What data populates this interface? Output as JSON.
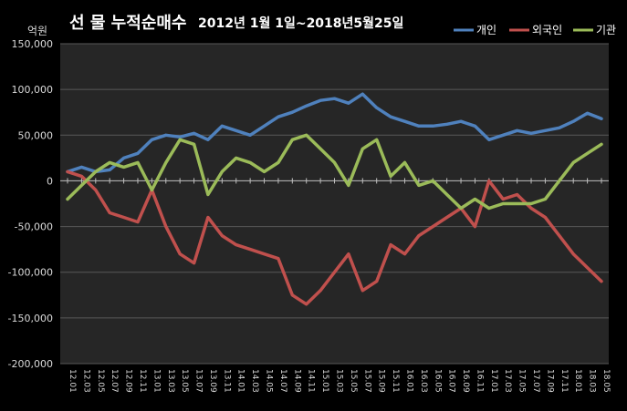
{
  "chart_data": {
    "type": "line",
    "title_main": "선 물 누적순매수",
    "title_sub": "2012년 1월 1일~2018년5월25일",
    "unit_label": "억원",
    "ylim": [
      -200000,
      150000
    ],
    "yticks": [
      150000,
      100000,
      50000,
      0,
      -50000,
      -100000,
      -150000,
      -200000
    ],
    "ytick_labels": [
      "150,000",
      "100,000",
      "50,000",
      "0",
      "-50,000",
      "-100,000",
      "-150,000",
      "-200,000"
    ],
    "grid": true,
    "legend_position": "top-right",
    "x_start": "2012-01",
    "x_end": "2018-05",
    "xtick_labels": [
      "12.01",
      "12.03",
      "12.05",
      "12.07",
      "12.09",
      "12.11",
      "13.01",
      "13.03",
      "13.05",
      "13.07",
      "13.09",
      "13.11",
      "14.01",
      "14.03",
      "14.05",
      "14.07",
      "14.09",
      "14.11",
      "15.01",
      "15.03",
      "15.05",
      "15.07",
      "15.09",
      "15.11",
      "16.01",
      "16.03",
      "16.05",
      "16.07",
      "16.09",
      "16.11",
      "17.01",
      "17.03",
      "17.05",
      "17.07",
      "17.09",
      "17.11",
      "18.01",
      "18.03",
      "18.05"
    ],
    "x": [
      "12.01",
      "12.03",
      "12.05",
      "12.07",
      "12.09",
      "12.11",
      "13.01",
      "13.03",
      "13.05",
      "13.07",
      "13.09",
      "13.11",
      "14.01",
      "14.03",
      "14.05",
      "14.07",
      "14.09",
      "14.11",
      "15.01",
      "15.03",
      "15.05",
      "15.07",
      "15.09",
      "15.11",
      "16.01",
      "16.03",
      "16.05",
      "16.07",
      "16.09",
      "16.11",
      "17.01",
      "17.03",
      "17.05",
      "17.07",
      "17.09",
      "17.11",
      "18.01",
      "18.03",
      "18.05"
    ],
    "series": [
      {
        "name": "개인",
        "color": "#4f81bd",
        "values": [
          10000,
          15000,
          10000,
          12000,
          25000,
          30000,
          45000,
          50000,
          48000,
          52000,
          45000,
          60000,
          55000,
          50000,
          60000,
          70000,
          75000,
          82000,
          88000,
          90000,
          85000,
          95000,
          80000,
          70000,
          65000,
          60000,
          60000,
          62000,
          65000,
          60000,
          45000,
          50000,
          55000,
          52000,
          55000,
          58000,
          65000,
          74000,
          68000
        ]
      },
      {
        "name": "외국인",
        "color": "#c0504d",
        "values": [
          10000,
          5000,
          -10000,
          -35000,
          -40000,
          -45000,
          -10000,
          -50000,
          -80000,
          -90000,
          -40000,
          -60000,
          -70000,
          -75000,
          -80000,
          -85000,
          -125000,
          -135000,
          -120000,
          -100000,
          -80000,
          -120000,
          -110000,
          -70000,
          -80000,
          -60000,
          -50000,
          -40000,
          -30000,
          -50000,
          0,
          -20000,
          -15000,
          -30000,
          -40000,
          -60000,
          -80000,
          -95000,
          -110000
        ]
      },
      {
        "name": "기관",
        "color": "#9bbb59",
        "values": [
          -20000,
          -5000,
          10000,
          20000,
          15000,
          20000,
          -10000,
          20000,
          45000,
          40000,
          -15000,
          10000,
          25000,
          20000,
          10000,
          20000,
          45000,
          50000,
          35000,
          20000,
          -5000,
          35000,
          45000,
          5000,
          20000,
          -5000,
          0,
          -15000,
          -30000,
          -20000,
          -30000,
          -25000,
          -25000,
          -25000,
          -20000,
          0,
          20000,
          30000,
          40000
        ]
      }
    ]
  }
}
